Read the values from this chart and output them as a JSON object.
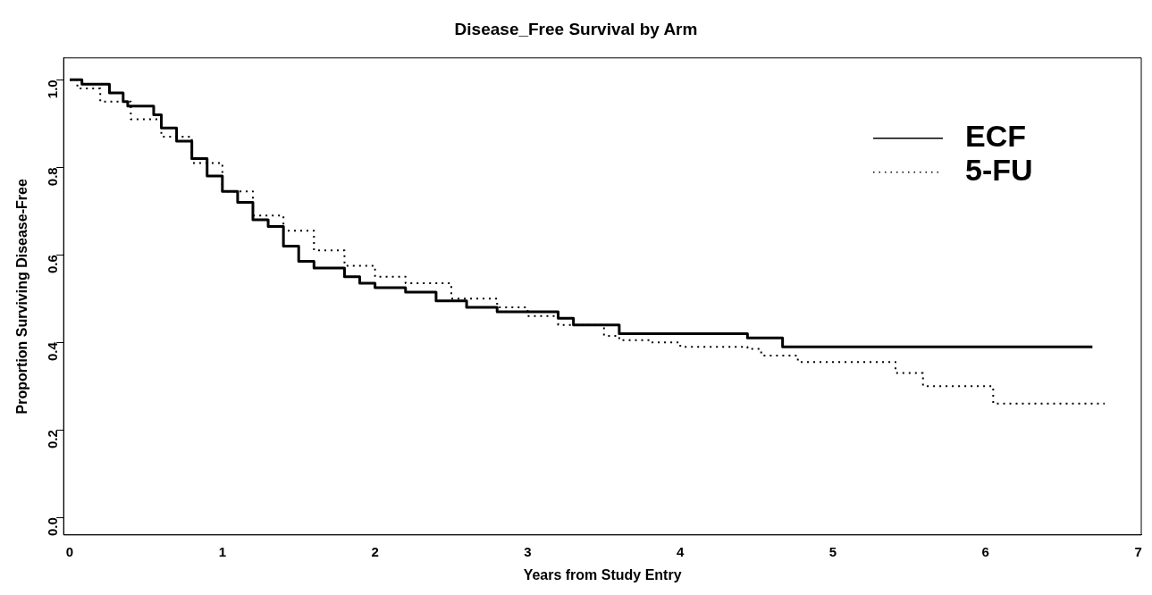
{
  "chart_data": {
    "type": "step",
    "title": "Disease_Free Survival by Arm",
    "xlabel": "Years from Study Entry",
    "ylabel": "Proportion Surviving Disease-Free",
    "xlim": [
      -0.04,
      7.02
    ],
    "ylim": [
      -0.04,
      1.05
    ],
    "xticks": [
      0,
      1,
      2,
      3,
      4,
      5,
      6,
      7
    ],
    "yticks": [
      {
        "value": 0,
        "label": "0.0"
      },
      0.2,
      0.4,
      0.6,
      0.8,
      {
        "value": 1,
        "label": "1.0"
      }
    ],
    "grid": false,
    "legend": "top right",
    "marker": "none",
    "series": [
      {
        "name": "ECF",
        "color": "#000000",
        "line_style": "solid",
        "x": [
          0,
          0.08,
          0.26,
          0.35,
          0.38,
          0.55,
          0.6,
          0.7,
          0.8,
          0.9,
          1.0,
          1.1,
          1.2,
          1.3,
          1.4,
          1.5,
          1.6,
          1.8,
          1.9,
          2.0,
          2.2,
          2.4,
          2.6,
          2.8,
          3.2,
          3.3,
          3.6,
          4.44,
          4.67,
          6.7
        ],
        "values": [
          1.0,
          0.99,
          0.97,
          0.95,
          0.94,
          0.92,
          0.89,
          0.86,
          0.82,
          0.78,
          0.745,
          0.72,
          0.68,
          0.665,
          0.62,
          0.585,
          0.57,
          0.55,
          0.535,
          0.525,
          0.515,
          0.495,
          0.48,
          0.47,
          0.455,
          0.44,
          0.42,
          0.41,
          0.39,
          0.39
        ]
      },
      {
        "name": "5-FU",
        "color": "#000000",
        "line_style": "dotted",
        "x": [
          0,
          0.05,
          0.2,
          0.4,
          0.6,
          0.8,
          1.0,
          1.2,
          1.4,
          1.6,
          1.8,
          2.0,
          2.2,
          2.5,
          2.8,
          3.0,
          3.2,
          3.5,
          3.6,
          3.8,
          4.0,
          4.44,
          4.53,
          4.77,
          5.41,
          5.59,
          6.05,
          6.78
        ],
        "values": [
          1.0,
          0.98,
          0.95,
          0.91,
          0.87,
          0.81,
          0.745,
          0.69,
          0.655,
          0.61,
          0.575,
          0.55,
          0.535,
          0.5,
          0.48,
          0.46,
          0.44,
          0.415,
          0.405,
          0.4,
          0.39,
          0.385,
          0.37,
          0.355,
          0.33,
          0.3,
          0.26,
          0.26
        ]
      }
    ]
  }
}
